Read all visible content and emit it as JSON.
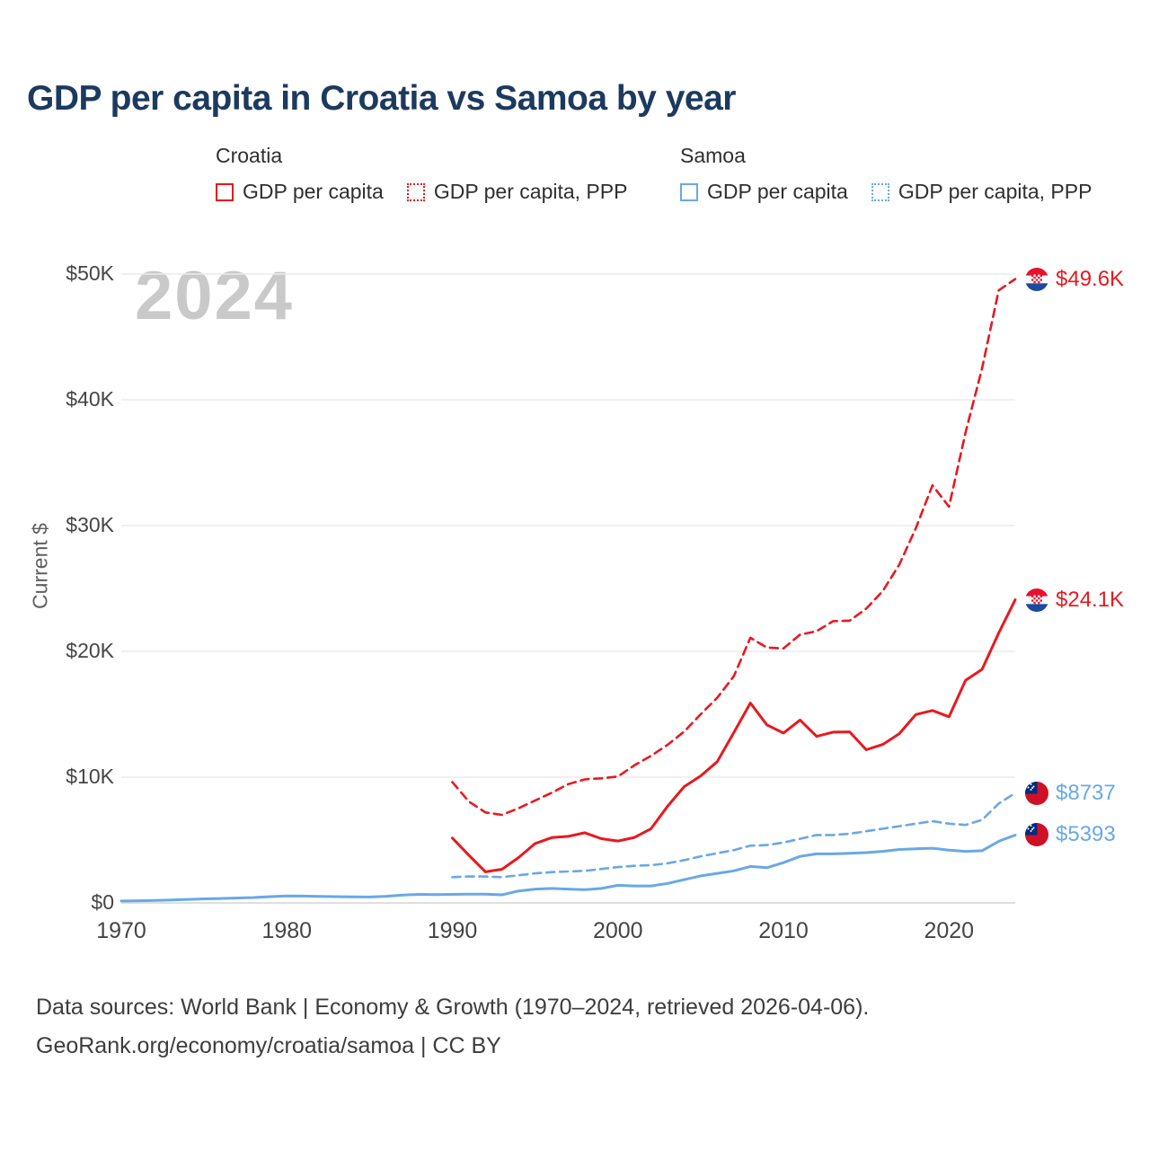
{
  "header": {
    "title": "GDP per capita in Croatia vs Samoa by year"
  },
  "watermark": "2024",
  "legend": {
    "groups": [
      {
        "label": "Croatia",
        "items": [
          {
            "label": "GDP per capita",
            "style": "solid",
            "color": "#e8191f"
          },
          {
            "label": "GDP per capita, PPP",
            "style": "dotted",
            "color": "#e8191f"
          }
        ]
      },
      {
        "label": "Samoa",
        "items": [
          {
            "label": "GDP per capita",
            "style": "solid",
            "color": "#69a8e6"
          },
          {
            "label": "GDP per capita, PPP",
            "style": "dotted",
            "color": "#69a8e6"
          }
        ]
      }
    ]
  },
  "footer": {
    "line1": "Data sources: World Bank | Economy & Growth (1970–2024, retrieved 2026-04-06).",
    "line2": "GeoRank.org/economy/croatia/samoa | CC BY"
  },
  "chart_data": {
    "type": "line",
    "title": "GDP per capita in Croatia vs Samoa by year",
    "xlabel": "",
    "ylabel": "Current $",
    "xlim": [
      1970,
      2024
    ],
    "ylim": [
      0,
      50000
    ],
    "grid": true,
    "yticks": [
      {
        "value": 0,
        "label": "$0"
      },
      {
        "value": 10000,
        "label": "$10K"
      },
      {
        "value": 20000,
        "label": "$20K"
      },
      {
        "value": 30000,
        "label": "$30K"
      },
      {
        "value": 40000,
        "label": "$40K"
      },
      {
        "value": 50000,
        "label": "$50K"
      }
    ],
    "xticks": [
      {
        "value": 1970,
        "label": "1970"
      },
      {
        "value": 1980,
        "label": "1980"
      },
      {
        "value": 1990,
        "label": "1990"
      },
      {
        "value": 2000,
        "label": "2000"
      },
      {
        "value": 2010,
        "label": "2010"
      },
      {
        "value": 2020,
        "label": "2020"
      }
    ],
    "series": [
      {
        "name": "Croatia GDP per capita, PPP",
        "color": "#e8191f",
        "dash": "dashed",
        "flag": "croatia",
        "start_year": 1990,
        "end_label": "$49.6K",
        "values": [
          9610,
          8060,
          7190,
          7000,
          7530,
          8140,
          8760,
          9440,
          9820,
          9910,
          10050,
          10940,
          11690,
          12570,
          13620,
          15000,
          16310,
          18030,
          21080,
          20300,
          20230,
          21330,
          21600,
          22400,
          22440,
          23400,
          24800,
          26900,
          29800,
          33200,
          31500,
          37400,
          42500,
          48700,
          49600
        ]
      },
      {
        "name": "Croatia GDP per capita",
        "color": "#e8191f",
        "dash": "solid",
        "flag": "croatia",
        "start_year": 1990,
        "end_label": "$24.1K",
        "values": [
          5160,
          3790,
          2470,
          2680,
          3610,
          4720,
          5190,
          5290,
          5580,
          5110,
          4920,
          5210,
          5900,
          7690,
          9240,
          10100,
          11230,
          13540,
          15890,
          14160,
          13510,
          14540,
          13240,
          13580,
          13600,
          12180,
          12600,
          13460,
          14980,
          15300,
          14800,
          17690,
          18570,
          21460,
          24100
        ]
      },
      {
        "name": "Samoa GDP per capita, PPP",
        "color": "#69a8e6",
        "dash": "dashed",
        "flag": "samoa",
        "start_year": 1990,
        "end_label": "$8737",
        "values": [
          2050,
          2100,
          2100,
          2050,
          2200,
          2350,
          2450,
          2500,
          2550,
          2700,
          2850,
          2950,
          3000,
          3150,
          3400,
          3700,
          3950,
          4200,
          4550,
          4600,
          4800,
          5100,
          5400,
          5400,
          5500,
          5700,
          5900,
          6100,
          6300,
          6500,
          6300,
          6200,
          6600,
          7900,
          8737
        ]
      },
      {
        "name": "Samoa GDP per capita",
        "color": "#69a8e6",
        "dash": "solid",
        "flag": "samoa",
        "start_year": 1970,
        "end_label": "$5393",
        "values": [
          150,
          170,
          190,
          230,
          280,
          320,
          350,
          390,
          430,
          500,
          560,
          540,
          520,
          500,
          480,
          470,
          530,
          620,
          680,
          660,
          680,
          700,
          690,
          640,
          950,
          1100,
          1150,
          1100,
          1050,
          1150,
          1400,
          1350,
          1350,
          1550,
          1850,
          2150,
          2350,
          2550,
          2900,
          2800,
          3200,
          3700,
          3900,
          3900,
          3950,
          4000,
          4100,
          4250,
          4300,
          4350,
          4200,
          4100,
          4150,
          4900,
          5393
        ]
      }
    ]
  }
}
